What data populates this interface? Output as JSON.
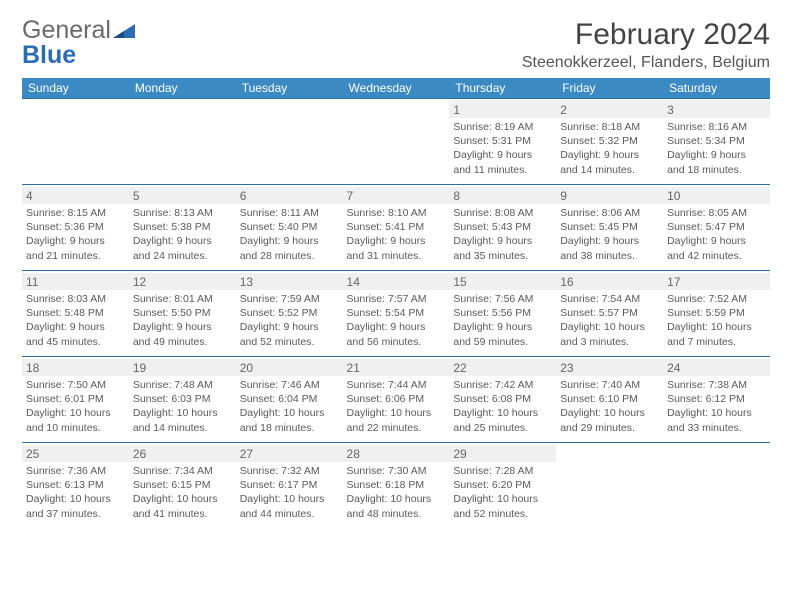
{
  "brand": {
    "word1": "General",
    "word2": "Blue",
    "accent_color": "#2a6db5"
  },
  "title": "February 2024",
  "location": "Steenokkerzeel, Flanders, Belgium",
  "header_bg": "#3b8ac4",
  "day_headers": [
    "Sunday",
    "Monday",
    "Tuesday",
    "Wednesday",
    "Thursday",
    "Friday",
    "Saturday"
  ],
  "weeks": [
    [
      null,
      null,
      null,
      null,
      {
        "n": "1",
        "sr": "8:19 AM",
        "ss": "5:31 PM",
        "dl": "9 hours and 11 minutes."
      },
      {
        "n": "2",
        "sr": "8:18 AM",
        "ss": "5:32 PM",
        "dl": "9 hours and 14 minutes."
      },
      {
        "n": "3",
        "sr": "8:16 AM",
        "ss": "5:34 PM",
        "dl": "9 hours and 18 minutes."
      }
    ],
    [
      {
        "n": "4",
        "sr": "8:15 AM",
        "ss": "5:36 PM",
        "dl": "9 hours and 21 minutes."
      },
      {
        "n": "5",
        "sr": "8:13 AM",
        "ss": "5:38 PM",
        "dl": "9 hours and 24 minutes."
      },
      {
        "n": "6",
        "sr": "8:11 AM",
        "ss": "5:40 PM",
        "dl": "9 hours and 28 minutes."
      },
      {
        "n": "7",
        "sr": "8:10 AM",
        "ss": "5:41 PM",
        "dl": "9 hours and 31 minutes."
      },
      {
        "n": "8",
        "sr": "8:08 AM",
        "ss": "5:43 PM",
        "dl": "9 hours and 35 minutes."
      },
      {
        "n": "9",
        "sr": "8:06 AM",
        "ss": "5:45 PM",
        "dl": "9 hours and 38 minutes."
      },
      {
        "n": "10",
        "sr": "8:05 AM",
        "ss": "5:47 PM",
        "dl": "9 hours and 42 minutes."
      }
    ],
    [
      {
        "n": "11",
        "sr": "8:03 AM",
        "ss": "5:48 PM",
        "dl": "9 hours and 45 minutes."
      },
      {
        "n": "12",
        "sr": "8:01 AM",
        "ss": "5:50 PM",
        "dl": "9 hours and 49 minutes."
      },
      {
        "n": "13",
        "sr": "7:59 AM",
        "ss": "5:52 PM",
        "dl": "9 hours and 52 minutes."
      },
      {
        "n": "14",
        "sr": "7:57 AM",
        "ss": "5:54 PM",
        "dl": "9 hours and 56 minutes."
      },
      {
        "n": "15",
        "sr": "7:56 AM",
        "ss": "5:56 PM",
        "dl": "9 hours and 59 minutes."
      },
      {
        "n": "16",
        "sr": "7:54 AM",
        "ss": "5:57 PM",
        "dl": "10 hours and 3 minutes."
      },
      {
        "n": "17",
        "sr": "7:52 AM",
        "ss": "5:59 PM",
        "dl": "10 hours and 7 minutes."
      }
    ],
    [
      {
        "n": "18",
        "sr": "7:50 AM",
        "ss": "6:01 PM",
        "dl": "10 hours and 10 minutes."
      },
      {
        "n": "19",
        "sr": "7:48 AM",
        "ss": "6:03 PM",
        "dl": "10 hours and 14 minutes."
      },
      {
        "n": "20",
        "sr": "7:46 AM",
        "ss": "6:04 PM",
        "dl": "10 hours and 18 minutes."
      },
      {
        "n": "21",
        "sr": "7:44 AM",
        "ss": "6:06 PM",
        "dl": "10 hours and 22 minutes."
      },
      {
        "n": "22",
        "sr": "7:42 AM",
        "ss": "6:08 PM",
        "dl": "10 hours and 25 minutes."
      },
      {
        "n": "23",
        "sr": "7:40 AM",
        "ss": "6:10 PM",
        "dl": "10 hours and 29 minutes."
      },
      {
        "n": "24",
        "sr": "7:38 AM",
        "ss": "6:12 PM",
        "dl": "10 hours and 33 minutes."
      }
    ],
    [
      {
        "n": "25",
        "sr": "7:36 AM",
        "ss": "6:13 PM",
        "dl": "10 hours and 37 minutes."
      },
      {
        "n": "26",
        "sr": "7:34 AM",
        "ss": "6:15 PM",
        "dl": "10 hours and 41 minutes."
      },
      {
        "n": "27",
        "sr": "7:32 AM",
        "ss": "6:17 PM",
        "dl": "10 hours and 44 minutes."
      },
      {
        "n": "28",
        "sr": "7:30 AM",
        "ss": "6:18 PM",
        "dl": "10 hours and 48 minutes."
      },
      {
        "n": "29",
        "sr": "7:28 AM",
        "ss": "6:20 PM",
        "dl": "10 hours and 52 minutes."
      },
      null,
      null
    ]
  ],
  "labels": {
    "sunrise": "Sunrise: ",
    "sunset": "Sunset: ",
    "daylight": "Daylight: "
  }
}
